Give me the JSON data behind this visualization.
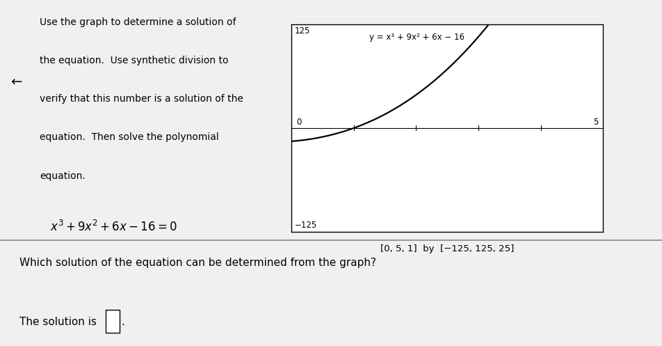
{
  "bg_color": "#f0f0f0",
  "graph_bg": "#ffffff",
  "text_color": "#000000",
  "left_text_lines": [
    "Use the graph to determine a solution of",
    "the equation.  Use synthetic division to",
    "verify that this number is a solution of the",
    "equation.  Then solve the polynomial",
    "equation."
  ],
  "equation_text_parts": [
    "x",
    "3",
    " + 9x",
    "2",
    " + 6x − 16 = 0"
  ],
  "graph_label": "y = x³ + 9x² + 6x − 16",
  "graph_y_top_label": "125",
  "graph_y_bot_label": "−125",
  "graph_x_right_label": "5",
  "graph_x_left_label": "0",
  "window_label": "[0, 5, 1]  by  [−125, 125, 25]",
  "xmin": 0,
  "xmax": 5,
  "ymin": -125,
  "ymax": 125,
  "question_text": "Which solution of the equation can be determined from the graph?",
  "answer_prefix": "The solution is",
  "graph_line_color": "#000000",
  "separator_color": "#888888",
  "left_arrow": "←",
  "top_bar_color": "#3a7ab5"
}
